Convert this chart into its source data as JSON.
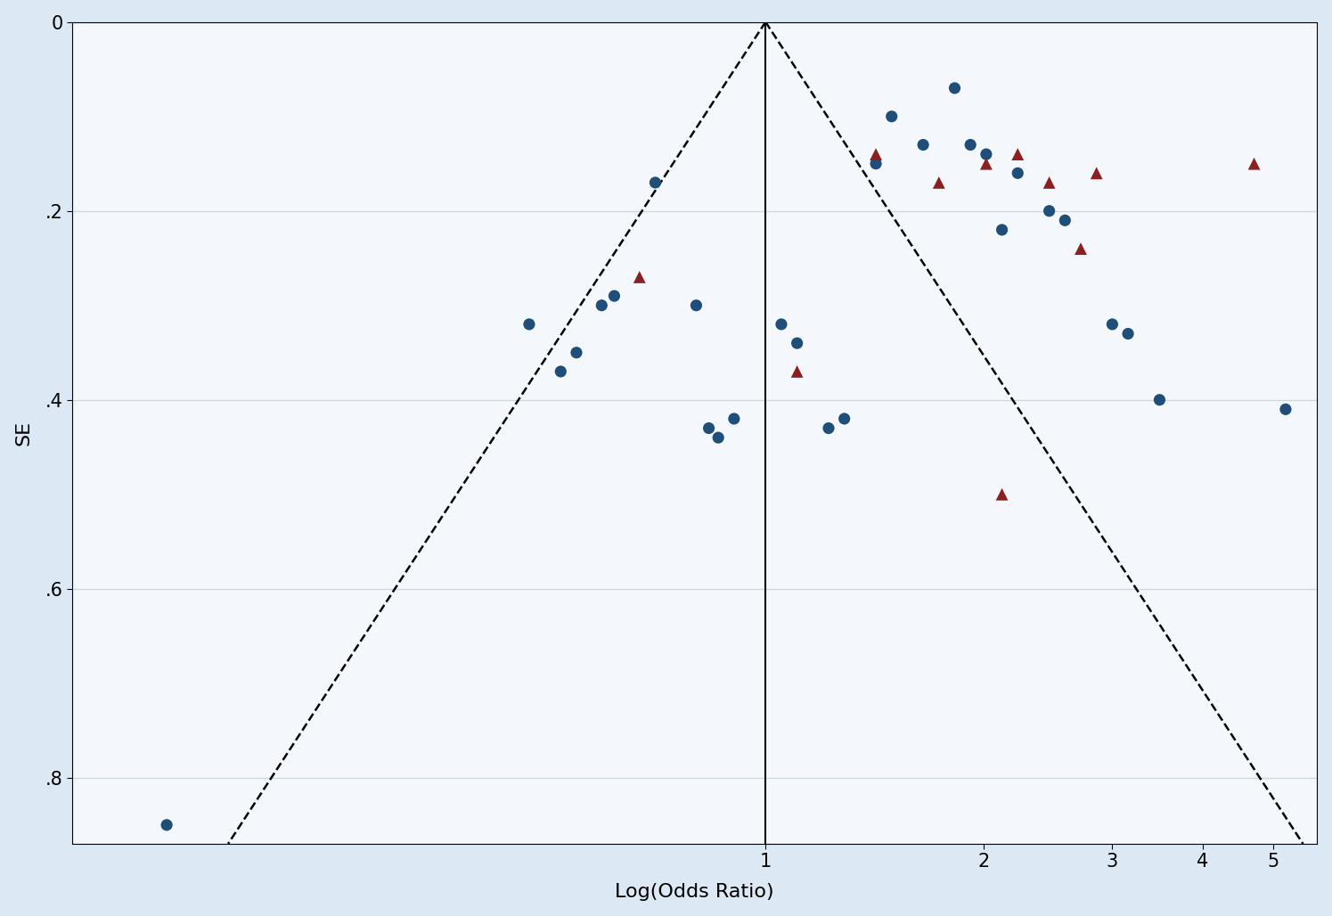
{
  "blue_circles": [
    [
      -1.9,
      0.85
    ],
    [
      -0.75,
      0.32
    ],
    [
      -0.65,
      0.37
    ],
    [
      -0.6,
      0.35
    ],
    [
      -0.52,
      0.3
    ],
    [
      -0.48,
      0.29
    ],
    [
      -0.35,
      0.17
    ],
    [
      -0.22,
      0.3
    ],
    [
      -0.18,
      0.43
    ],
    [
      -0.15,
      0.44
    ],
    [
      -0.1,
      0.42
    ],
    [
      0.05,
      0.32
    ],
    [
      0.1,
      0.34
    ],
    [
      0.2,
      0.43
    ],
    [
      0.25,
      0.42
    ],
    [
      0.35,
      0.15
    ],
    [
      0.4,
      0.1
    ],
    [
      0.5,
      0.13
    ],
    [
      0.6,
      0.07
    ],
    [
      0.65,
      0.13
    ],
    [
      0.7,
      0.14
    ],
    [
      0.75,
      0.22
    ],
    [
      0.8,
      0.16
    ],
    [
      0.9,
      0.2
    ],
    [
      0.95,
      0.21
    ],
    [
      1.1,
      0.32
    ],
    [
      1.15,
      0.33
    ],
    [
      1.25,
      0.4
    ],
    [
      1.65,
      0.41
    ]
  ],
  "red_triangles": [
    [
      -0.4,
      0.27
    ],
    [
      0.1,
      0.37
    ],
    [
      0.35,
      0.14
    ],
    [
      0.55,
      0.17
    ],
    [
      0.7,
      0.15
    ],
    [
      0.8,
      0.14
    ],
    [
      0.9,
      0.17
    ],
    [
      1.0,
      0.24
    ],
    [
      1.05,
      0.16
    ],
    [
      0.75,
      0.5
    ],
    [
      1.55,
      0.15
    ]
  ],
  "xlim": [
    -2.2,
    1.75
  ],
  "ylim": [
    0.0,
    0.87
  ],
  "yticks": [
    0.0,
    0.2,
    0.4,
    0.6,
    0.8
  ],
  "ytick_labels": [
    "0",
    ".2",
    ".4",
    ".6",
    ".8"
  ],
  "xtick_labels": [
    "",
    "",
    "1",
    "2",
    "3",
    "4",
    "5"
  ],
  "xlabel": "Log(Odds Ratio)",
  "ylabel": "SE",
  "background_color": "#dce9f5",
  "plot_bg_color": "#f4f8fd",
  "blue_color": "#1f4e79",
  "red_color": "#8b2020",
  "marker_size": 90,
  "funnel_se_max": 0.87,
  "pooled_log_or": 0.0,
  "ci_multiplier": 1.96,
  "vertical_line_x": 0.0
}
